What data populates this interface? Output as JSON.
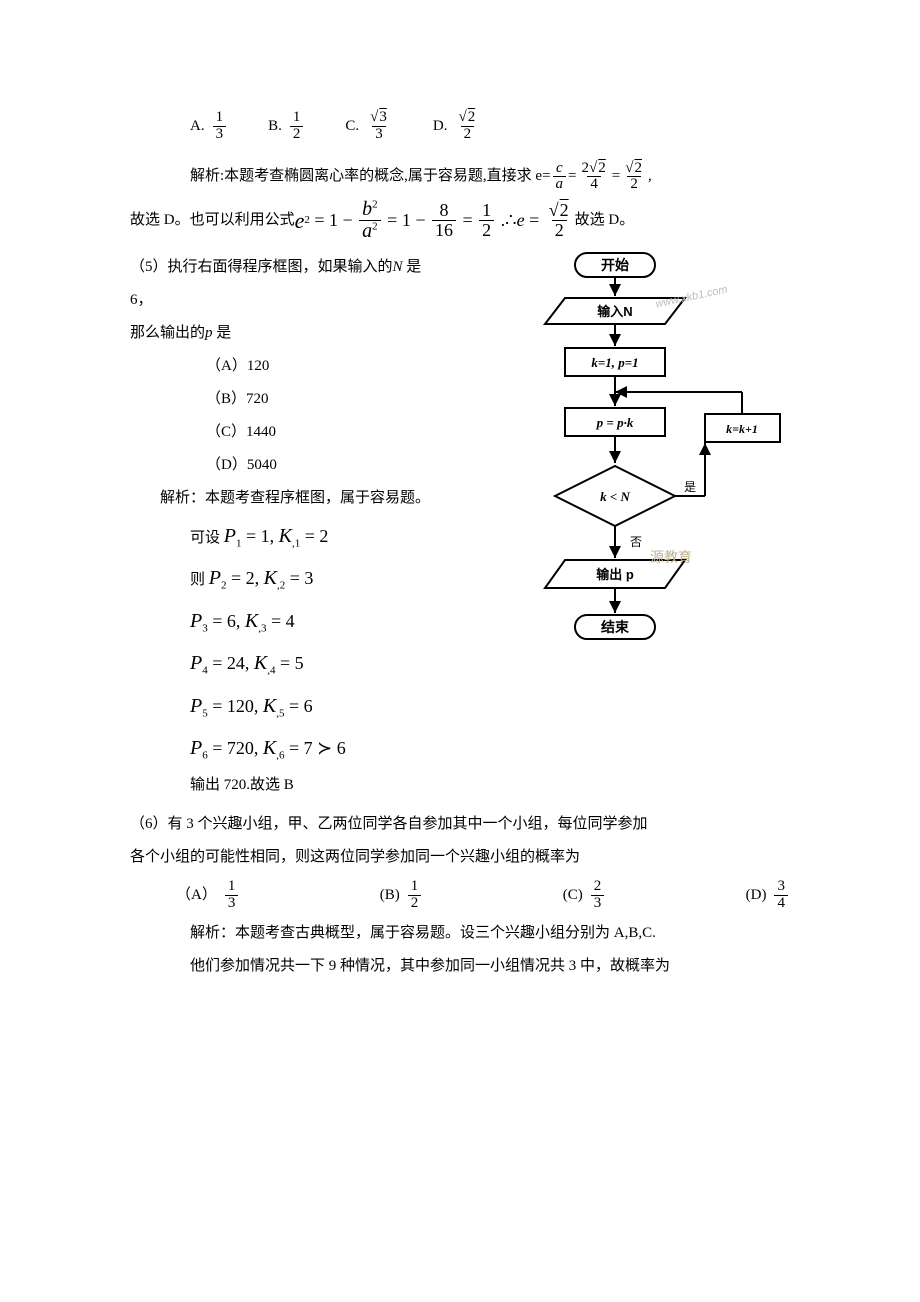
{
  "q4": {
    "options": {
      "A_label": "A.",
      "A_num": "1",
      "A_den": "3",
      "B_label": "B.",
      "B_num": "1",
      "B_den": "2",
      "C_label": "C.",
      "C_num_rad": "3",
      "C_den": "3",
      "D_label": "D.",
      "D_num_rad": "2",
      "D_den": "2"
    },
    "analysis_pre": "解析:本题考查椭圆离心率的概念,属于容易题,直接求 e=",
    "eccentricity": {
      "c_over_a_num": "c",
      "c_over_a_den": "a",
      "mid_num_coef": "2",
      "mid_num_rad": "2",
      "mid_den": "4",
      "final_num_rad": "2",
      "final_den": "2"
    },
    "analysis_post": ",",
    "line2_pre": "故选 D。也可以利用公式",
    "formula": {
      "e2_lhs": "e",
      "e2_exp": "2",
      "b": "b",
      "a": "a",
      "val1_num": "8",
      "val1_den": "16",
      "val2_num": "1",
      "val2_den": "2",
      "therefore": "∴",
      "e": "e",
      "final_num_rad": "2",
      "final_den": "2"
    },
    "line2_post": "故选 D。"
  },
  "q5": {
    "stem1": "（5）执行右面得程序框图，如果输入的",
    "n_var": "N",
    "stem1b": " 是",
    "stem2": "6，",
    "stem3": "那么输出的",
    "p_var": "p",
    "stem3b": " 是",
    "optA": "（A）120",
    "optB": "（B）720",
    "optC": "（C）1440",
    "optD": "（D）5040",
    "analysis1": "解析：本题考查程序框图，属于容易题。",
    "set_label": "可设 ",
    "then_label": "则 ",
    "steps": [
      {
        "P": "P",
        "Pi": "1",
        "Pv": "1",
        "K": "K",
        "Ki": "1",
        "Kv": "2"
      },
      {
        "P": "P",
        "Pi": "2",
        "Pv": "2",
        "K": "K",
        "Ki": "2",
        "Kv": "3"
      },
      {
        "P": "P",
        "Pi": "3",
        "Pv": "6",
        "K": "K",
        "Ki": "3",
        "Kv": "4"
      },
      {
        "P": "P",
        "Pi": "4",
        "Pv": "24",
        "K": "K",
        "Ki": "4",
        "Kv": "5"
      },
      {
        "P": "P",
        "Pi": "5",
        "Pv": "120",
        "K": "K",
        "Ki": "5",
        "Kv": "6"
      },
      {
        "P": "P",
        "Pi": "6",
        "Pv": "720",
        "K": "K",
        "Ki": "6",
        "Kv": "7 ≻ 6"
      }
    ],
    "output_line": "输出 720.故选 B"
  },
  "flowchart": {
    "start": "开始",
    "input": "输入N",
    "init": "k=1, p=1",
    "assign": "p = p·k",
    "cond": "k < N",
    "inc": "k=k+1",
    "yes": "是",
    "no": "否",
    "output": "输出 p",
    "end": "结束",
    "watermark1": "www.xkb1.com",
    "watermark2": "源教育",
    "colors": {
      "stroke": "#000000",
      "fill": "#ffffff",
      "text": "#000000"
    }
  },
  "q6": {
    "stem1": "（6）有 3 个兴趣小组，甲、乙两位同学各自参加其中一个小组，每位同学参加",
    "stem2": "各个小组的可能性相同，则这两位同学参加同一个兴趣小组的概率为",
    "options": {
      "A_label": "（A）",
      "A_num": "1",
      "A_den": "3",
      "B_label": "(B)",
      "B_num": "1",
      "B_den": "2",
      "C_label": "(C)",
      "C_num": "2",
      "C_den": "3",
      "D_label": "(D)",
      "D_num": "3",
      "D_den": "4"
    },
    "analysis1": "解析：本题考查古典概型，属于容易题。设三个兴趣小组分别为 A,B,C.",
    "analysis2": "他们参加情况共一下 9 种情况，其中参加同一小组情况共 3 中，故概率为"
  }
}
